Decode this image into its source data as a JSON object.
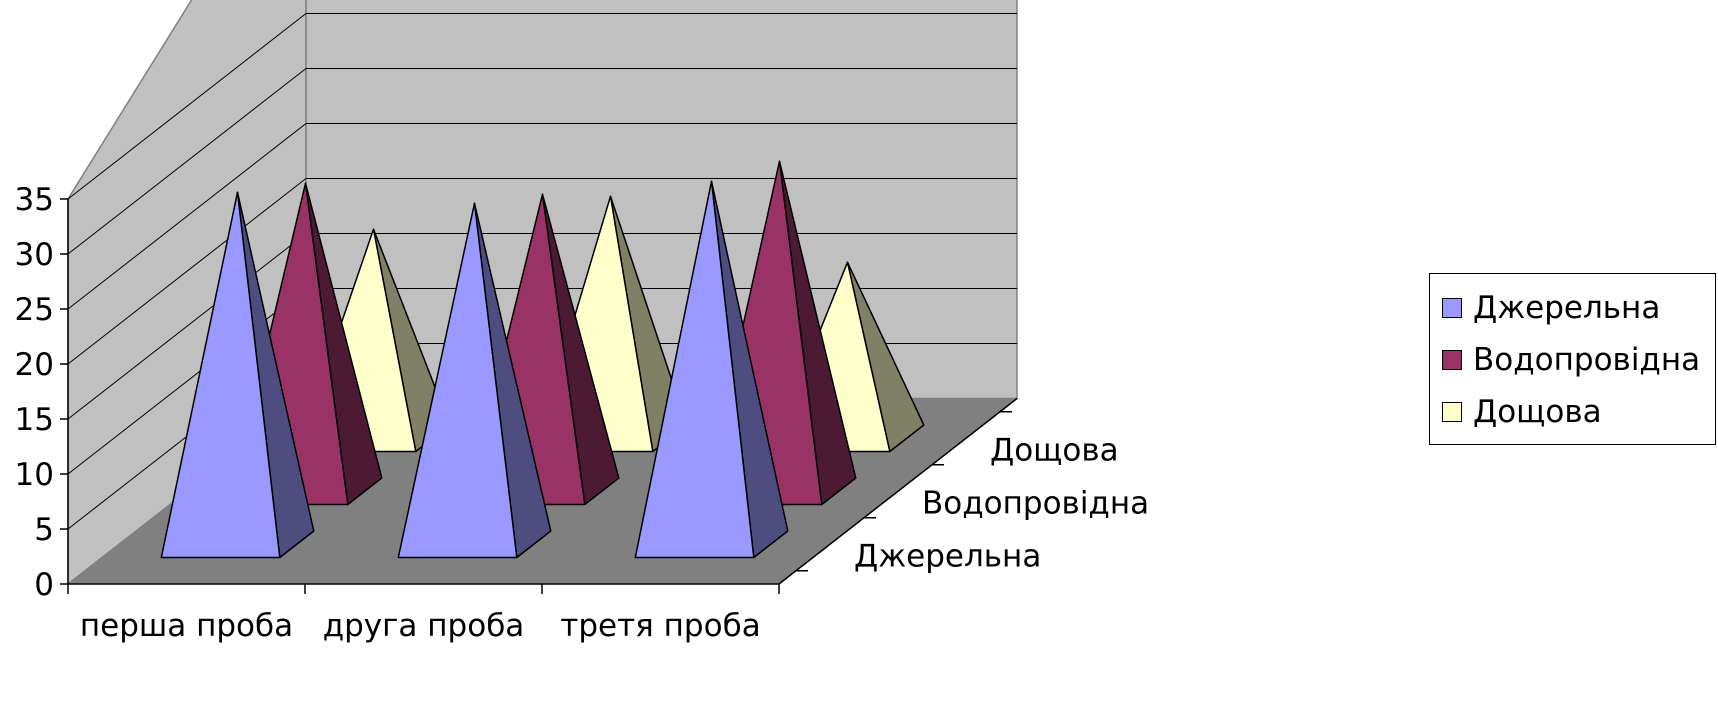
{
  "chart_data": {
    "type": "bar",
    "subtype": "3d-pyramid",
    "categories": [
      "перша проба",
      "друга проба",
      "третя проба"
    ],
    "series": [
      {
        "name": "Джерельна",
        "values": [
          32,
          31,
          33
        ],
        "color": "#9999ff"
      },
      {
        "name": "Водопровідна",
        "values": [
          28,
          27,
          30
        ],
        "color": "#993366"
      },
      {
        "name": "Дощова",
        "values": [
          19,
          22,
          16
        ],
        "color": "#ffffcc"
      }
    ],
    "ylim": [
      0,
      35
    ],
    "y_ticks": [
      "0",
      "5",
      "10",
      "15",
      "20",
      "25",
      "30",
      "35"
    ],
    "depth_labels": [
      "Джерельна",
      "Водопровідна",
      "Дощова"
    ],
    "legend_position": "right",
    "grid": true,
    "colors": {
      "wall": "#c0c0c0",
      "floor": "#808080",
      "gridline": "#000000"
    }
  }
}
